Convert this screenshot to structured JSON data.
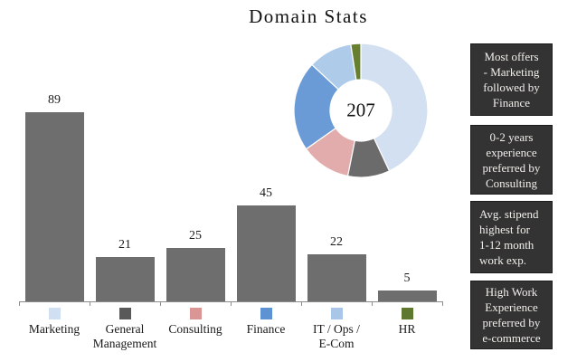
{
  "title": "Domain Stats",
  "chart_data": [
    {
      "type": "bar",
      "title": "Domain Stats",
      "categories": [
        "Marketing",
        "General Management",
        "Consulting",
        "Finance",
        "IT / Ops / E-Com",
        "HR"
      ],
      "category_labels": [
        "Marketing",
        "General\nManagement",
        "Consulting",
        "Finance",
        "IT / Ops /\nE-Com",
        "HR"
      ],
      "values": [
        89,
        21,
        25,
        45,
        22,
        5
      ],
      "value_labels": [
        "89",
        "21",
        "25",
        "45",
        "22",
        "5"
      ],
      "bar_color": "#6E6E6E",
      "legend_colors": [
        "#D0DFF1",
        "#595959",
        "#D99694",
        "#5E93D3",
        "#A9C6E8",
        "#5F7830"
      ],
      "xlabel": "",
      "ylabel": "",
      "grid": false,
      "legend_position": "bottom"
    },
    {
      "type": "pie",
      "subtype": "donut",
      "center_label": "207",
      "total": 207,
      "categories": [
        "Marketing",
        "General Management",
        "Consulting",
        "Finance",
        "IT / Ops / E-Com",
        "HR"
      ],
      "values": [
        89,
        21,
        25,
        45,
        22,
        5
      ],
      "colors": [
        "#D3E0F1",
        "#6B6B6B",
        "#E3ACAC",
        "#6B9BD7",
        "#AFCBEA",
        "#66802F"
      ],
      "start_angle_deg": 0,
      "direction": "clockwise"
    }
  ],
  "insights": [
    {
      "text": "Most offers\n- Marketing\nfollowed by\nFinance"
    },
    {
      "text": "0-2 years\nexperience\npreferred by\nConsulting"
    },
    {
      "text": "Avg. stipend\nhighest for\n1-12 month\nwork exp."
    },
    {
      "text": "High Work\nExperience\npreferred by\ne-commerce"
    }
  ],
  "colors": {
    "background": "#FFFFFF",
    "axis": "#8C8C8C",
    "text": "#1A1A1A",
    "insight_bg": "#333333",
    "insight_text": "#F2EFEA"
  }
}
